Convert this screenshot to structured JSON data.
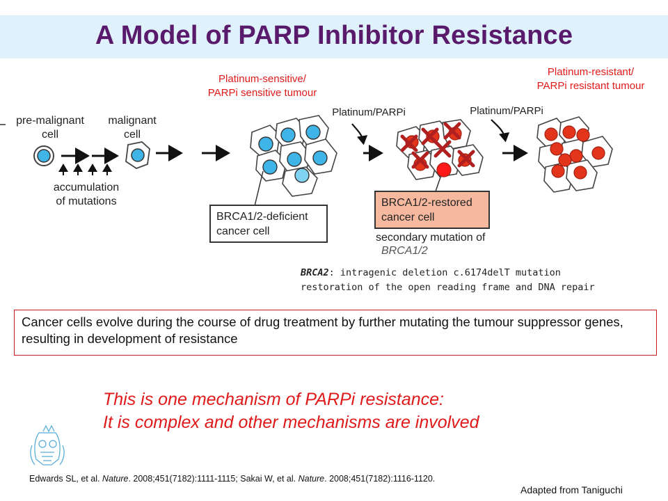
{
  "title": "A Model of PARP Inhibitor Resistance",
  "diagram": {
    "pre_malignant": "pre-malignant\ncell",
    "malignant": "malignant\ncell",
    "accumulation": "accumulation\nof mutations",
    "sensitive_tumour": "Platinum-sensitive/\nPARPi sensitive tumour",
    "resistant_tumour": "Platinum-resistant/\nPARPi resistant tumour",
    "drug_label_1": "Platinum/PARPi",
    "drug_label_2": "Platinum/PARPi",
    "deficient_box": "BRCA1/2-deficient\ncancer cell",
    "restored_box": "BRCA1/2-restored\ncancer cell",
    "secondary_mutation": "secondary mutation of",
    "secondary_gene": "BRCA1/2",
    "mutation_gene": "BRCA2",
    "mutation_line1": ": intragenic deletion c.6174delT mutation",
    "mutation_line2": "restoration of the open reading frame and DNA repair"
  },
  "summary": "Cancer cells evolve during the course of drug treatment by further mutating the tumour suppressor genes, resulting in development of resistance",
  "tagline_line1": "This is one mechanism of PARPi resistance:",
  "tagline_line2": "It is complex and other mechanisms are involved",
  "reference": {
    "part1": "Edwards SL, et al. ",
    "journal1": "Nature",
    "part2": ". 2008;451(7182):1111-1115; Sakai W, et al. ",
    "journal2": "Nature",
    "part3": ". 2008;451(7182):1116-1120."
  },
  "adapted": "Adapted from Taniguchi",
  "colors": {
    "title": "#5a1a6b",
    "title_bar": "#dff1fb",
    "accent_red": "#e01a1a",
    "cell_blue": "#3fb4e6",
    "cell_red": "#e2351c",
    "restored_box_fill": "#f6b9a0"
  },
  "icons": [
    "crest-logo-icon",
    "arrow-right-icon",
    "x-mark-icon",
    "curved-arrow-icon"
  ]
}
